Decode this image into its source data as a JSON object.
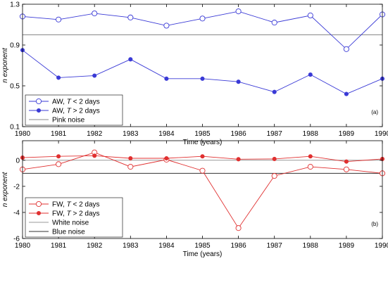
{
  "chart_data": [
    {
      "type": "line",
      "panel_label": "(a)",
      "xlabel": "Time (years)",
      "ylabel": "n exponent",
      "x": [
        1980,
        1981,
        1982,
        1983,
        1984,
        1985,
        1986,
        1987,
        1988,
        1989,
        1990
      ],
      "xlim": [
        1980,
        1990
      ],
      "ylim": [
        0.1,
        1.3
      ],
      "yticks": [
        0.1,
        0.5,
        0.9,
        1.3
      ],
      "yticklabels": [
        "0.1",
        "0.5",
        "0.9",
        "1.3"
      ],
      "grid": false,
      "legend_position": "bottom-left",
      "series": [
        {
          "name": "AW, T < 2 days",
          "legend_parts": [
            "AW, ",
            "T",
            " < 2 days"
          ],
          "marker": "open-circle",
          "color": "#3a3ad6",
          "values": [
            1.18,
            1.15,
            1.21,
            1.17,
            1.09,
            1.16,
            1.23,
            1.12,
            1.19,
            0.86,
            1.2
          ]
        },
        {
          "name": "AW, T > 2 days",
          "legend_parts": [
            "AW, ",
            "T",
            " > 2 days"
          ],
          "marker": "filled-circle",
          "color": "#3a3ad6",
          "values": [
            0.85,
            0.58,
            0.6,
            0.76,
            0.57,
            0.57,
            0.54,
            0.44,
            0.61,
            0.42,
            0.57
          ]
        },
        {
          "name": "Pink noise",
          "type": "hline",
          "color": "#888888",
          "value": 1.0
        }
      ]
    },
    {
      "type": "line",
      "panel_label": "(b)",
      "xlabel": "Time (years)",
      "ylabel": "n exponent",
      "x": [
        1980,
        1981,
        1982,
        1983,
        1984,
        1985,
        1986,
        1987,
        1988,
        1989,
        1990
      ],
      "xlim": [
        1980,
        1990
      ],
      "ylim": [
        -6,
        1.5
      ],
      "yticks": [
        -6,
        -4,
        -2,
        0
      ],
      "yticklabels": [
        "-6",
        "-4",
        "-2",
        "0"
      ],
      "grid": false,
      "legend_position": "bottom-left",
      "series": [
        {
          "name": "FW, T < 2 days",
          "legend_parts": [
            "FW, ",
            "T",
            " < 2 days"
          ],
          "marker": "open-circle",
          "color": "#e03030",
          "values": [
            -0.7,
            -0.3,
            0.6,
            -0.5,
            0.05,
            -0.8,
            -5.2,
            -1.2,
            -0.5,
            -0.7,
            -1.0
          ]
        },
        {
          "name": "FW, T > 2 days",
          "legend_parts": [
            "FW, ",
            "T",
            " > 2 days"
          ],
          "marker": "filled-circle",
          "color": "#e03030",
          "values": [
            0.2,
            0.3,
            0.35,
            0.15,
            0.15,
            0.3,
            0.08,
            0.1,
            0.3,
            -0.1,
            0.1
          ]
        },
        {
          "name": "White noise",
          "type": "hline",
          "color": "#999999",
          "value": 0
        },
        {
          "name": "Blue noise",
          "type": "hline",
          "color": "#333333",
          "value": -1
        }
      ]
    }
  ]
}
